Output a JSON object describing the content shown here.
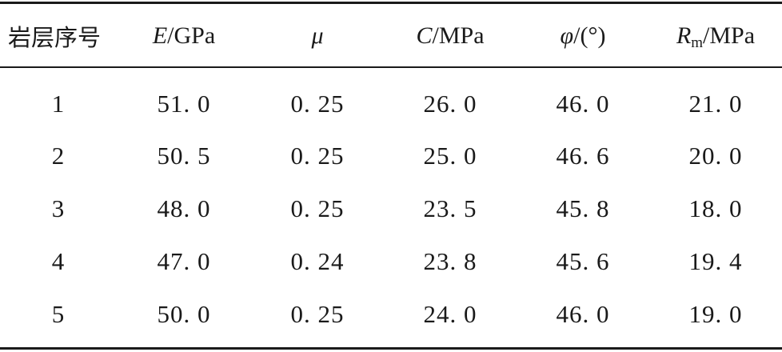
{
  "table": {
    "headers": {
      "layer": "岩层序号",
      "e_sym": "E",
      "e_unit": "/GPa",
      "mu_sym": "μ",
      "c_sym": "C",
      "c_unit": "/MPa",
      "phi_sym": "φ",
      "phi_unit": "/(°)",
      "rm_sym": "R",
      "rm_sub": "m",
      "rm_unit": "/MPa"
    },
    "rows": [
      {
        "layer": "1",
        "e": "51. 0",
        "mu": "0. 25",
        "c": "26. 0",
        "phi": "46. 0",
        "rm": "21. 0"
      },
      {
        "layer": "2",
        "e": "50. 5",
        "mu": "0. 25",
        "c": "25. 0",
        "phi": "46. 6",
        "rm": "20. 0"
      },
      {
        "layer": "3",
        "e": "48. 0",
        "mu": "0. 25",
        "c": "23. 5",
        "phi": "45. 8",
        "rm": "18. 0"
      },
      {
        "layer": "4",
        "e": "47. 0",
        "mu": "0. 24",
        "c": "23. 8",
        "phi": "45. 6",
        "rm": "19. 4"
      },
      {
        "layer": "5",
        "e": "50. 0",
        "mu": "0. 25",
        "c": "24. 0",
        "phi": "46. 0",
        "rm": "19. 0"
      }
    ]
  }
}
